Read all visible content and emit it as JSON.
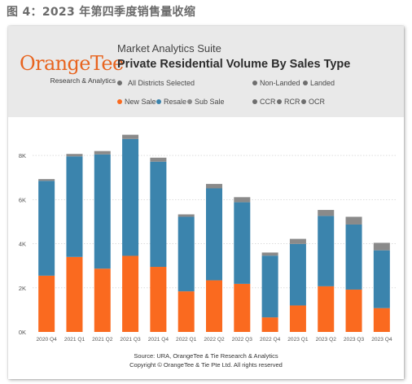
{
  "caption": "图 4：2023 年第四季度销售量收缩",
  "logo": {
    "name": "OrangeTee",
    "sub": "Research & Analytics"
  },
  "header": {
    "app_title": "Market Analytics Suite",
    "report_title": "Private Residential Volume By Sales Type",
    "filters": {
      "districts": "All Districts Selected",
      "non_landed": "Non-Landed",
      "landed": "Landed",
      "new_sale": "New Sale",
      "resale": "Resale",
      "sub_sale": "Sub Sale",
      "ccr": "CCR",
      "rcr": "RCR",
      "ocr": "OCR"
    }
  },
  "colors": {
    "new_sale": "#fa6a1f",
    "resale": "#3b84ad",
    "sub_sale": "#8a8a8a",
    "neutral_dot": "#6e6e6e",
    "grid": "#c9c9c9"
  },
  "chart_data": {
    "type": "bar",
    "stacked": true,
    "categories": [
      "2020 Q4",
      "2021 Q1",
      "2021 Q2",
      "2021 Q3",
      "2021 Q4",
      "2022 Q1",
      "2022 Q2",
      "2022 Q3",
      "2022 Q4",
      "2023 Q1",
      "2023 Q2",
      "2023 Q3",
      "2023 Q4"
    ],
    "series": [
      {
        "name": "New Sale",
        "values": [
          2550,
          3400,
          2870,
          3450,
          2950,
          1840,
          2340,
          2180,
          660,
          1200,
          2070,
          1920,
          1080
        ]
      },
      {
        "name": "Resale",
        "values": [
          4300,
          4560,
          5180,
          5300,
          4770,
          3380,
          4170,
          3700,
          2800,
          2790,
          3190,
          2950,
          2620
        ]
      },
      {
        "name": "Sub Sale",
        "values": [
          80,
          110,
          150,
          190,
          180,
          110,
          200,
          230,
          140,
          230,
          270,
          350,
          340
        ]
      }
    ],
    "yticks": [
      0,
      2000,
      4000,
      6000,
      8000
    ],
    "ytick_labels": [
      "0K",
      "2K",
      "4K",
      "6K",
      "8K"
    ],
    "ylim": [
      0,
      9000
    ],
    "grid": true,
    "legend": "top"
  },
  "footer": {
    "source": "Source: URA, OrangeTee & Tie Research & Analytics",
    "copyright": "Copyright © OrangeTee & Tie Pte Ltd. All rights reserved"
  }
}
